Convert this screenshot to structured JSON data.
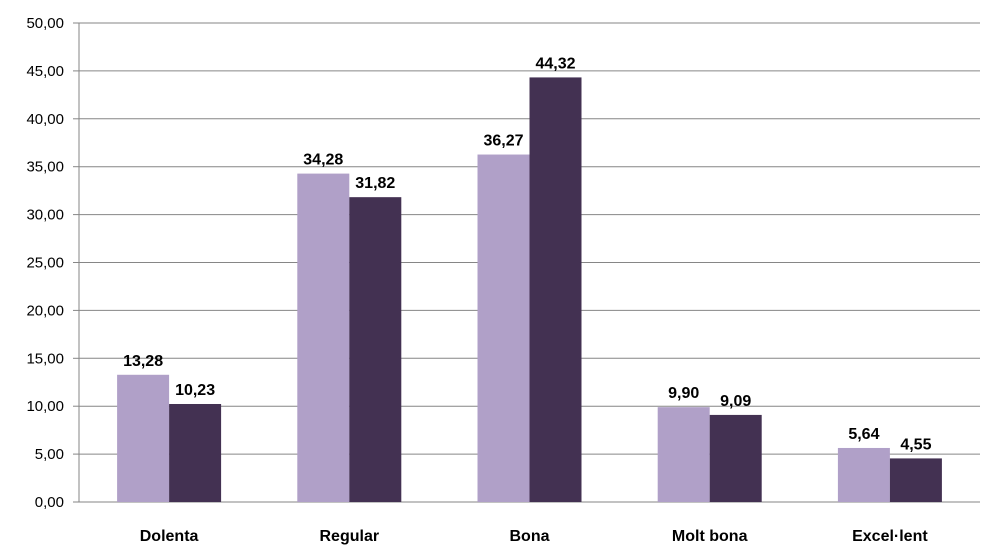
{
  "chart_data": {
    "type": "bar",
    "categories": [
      "Dolenta",
      "Regular",
      "Bona",
      "Molt bona",
      "Excel·lent"
    ],
    "series": [
      {
        "values": [
          13.28,
          34.28,
          36.27,
          9.9,
          5.64
        ],
        "color": "#b0a0c8",
        "labels": [
          "13,28",
          "34,28",
          "36,27",
          "9,90",
          "5,64"
        ]
      },
      {
        "values": [
          10.23,
          31.82,
          44.32,
          9.09,
          4.55
        ],
        "color": "#433152",
        "labels": [
          "10,23",
          "31,82",
          "44,32",
          "9,09",
          "4,55"
        ]
      }
    ],
    "y_ticks": [
      "0,00",
      "5,00",
      "10,00",
      "15,00",
      "20,00",
      "25,00",
      "30,00",
      "35,00",
      "40,00",
      "45,00",
      "50,00"
    ],
    "ylim": [
      0,
      50
    ],
    "y_step": 5,
    "grid": true,
    "legend": "none",
    "title": "",
    "xlabel": "",
    "ylabel": ""
  }
}
